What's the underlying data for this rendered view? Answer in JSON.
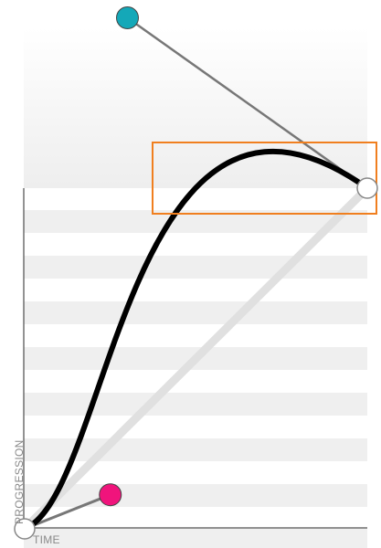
{
  "axes": {
    "x_label": "TIME",
    "y_label": "PROGRESSION"
  },
  "bezier": {
    "start": [
      0,
      0
    ],
    "p1": [
      0.25,
      0.1
    ],
    "p2": [
      0.3,
      1.5
    ],
    "end": [
      1,
      1
    ]
  },
  "colors": {
    "curve": "#000000",
    "linear_reference": "#e0e0e0",
    "handle_line": "#777777",
    "p1_handle": "#f0147c",
    "p2_handle": "#14a8b8",
    "endpoint": "#ffffff",
    "highlight_box": "#f07f1f",
    "stripe": "#efefef",
    "axis": "#6e6e6e"
  },
  "icons": {
    "p1": "pink-circle-handle",
    "p2": "teal-circle-handle",
    "endpoints": "white-circle-point"
  }
}
